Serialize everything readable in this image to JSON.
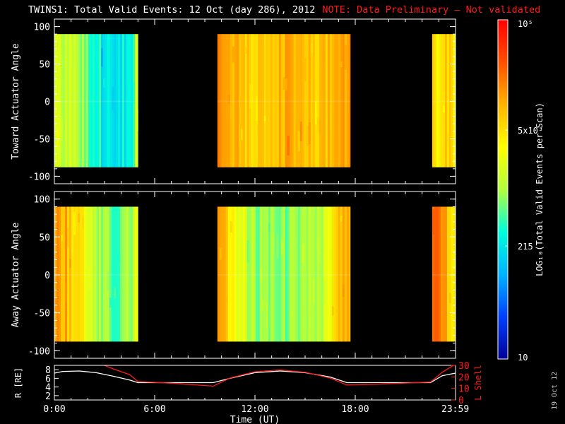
{
  "title": "TWINS1: Total Valid Events: 12 Oct (day 286), 2012",
  "note": "NOTE: Data Preliminary — Not validated",
  "footer_date": "19 Oct 12",
  "colors": {
    "background": "#000000",
    "note": "#ff1a1a",
    "l_shell": "#ff1a1a",
    "radius": "#ffffff"
  },
  "chart_data": [
    {
      "type": "heatmap",
      "id": "toward",
      "ylabel": "Toward Actuator Angle",
      "ylim": [
        -110,
        110
      ],
      "yticks": [
        100,
        50,
        0,
        -50,
        -100
      ],
      "data_ylim": [
        -88,
        90
      ],
      "data_intervals_hours": [
        [
          0.0,
          5.0
        ],
        [
          9.75,
          17.7
        ],
        [
          22.6,
          23.99
        ]
      ],
      "level_profile": [
        {
          "x": 0.0,
          "v": 0.55
        },
        {
          "x": 1.2,
          "v": 0.52
        },
        {
          "x": 2.5,
          "v": 0.38
        },
        {
          "x": 3.5,
          "v": 0.3
        },
        {
          "x": 4.5,
          "v": 0.36
        },
        {
          "x": 5.0,
          "v": 0.62
        },
        {
          "x": 9.75,
          "v": 0.76
        },
        {
          "x": 11.0,
          "v": 0.74
        },
        {
          "x": 12.0,
          "v": 0.7
        },
        {
          "x": 14.0,
          "v": 0.74
        },
        {
          "x": 16.0,
          "v": 0.73
        },
        {
          "x": 17.7,
          "v": 0.76
        },
        {
          "x": 22.6,
          "v": 0.66
        },
        {
          "x": 23.3,
          "v": 0.68
        },
        {
          "x": 24.0,
          "v": 0.64
        }
      ]
    },
    {
      "type": "heatmap",
      "id": "away",
      "ylabel": "Away Actuator Angle",
      "ylim": [
        -110,
        110
      ],
      "yticks": [
        100,
        50,
        0,
        -50,
        -100
      ],
      "data_ylim": [
        -88,
        90
      ],
      "data_intervals_hours": [
        [
          0.0,
          5.0
        ],
        [
          9.75,
          17.7
        ],
        [
          22.6,
          23.99
        ]
      ],
      "level_profile": [
        {
          "x": 0.0,
          "v": 0.8
        },
        {
          "x": 1.0,
          "v": 0.72
        },
        {
          "x": 2.5,
          "v": 0.48
        },
        {
          "x": 3.8,
          "v": 0.42
        },
        {
          "x": 5.0,
          "v": 0.58
        },
        {
          "x": 9.75,
          "v": 0.84
        },
        {
          "x": 10.5,
          "v": 0.66
        },
        {
          "x": 12.0,
          "v": 0.48
        },
        {
          "x": 14.0,
          "v": 0.45
        },
        {
          "x": 16.0,
          "v": 0.52
        },
        {
          "x": 17.2,
          "v": 0.74
        },
        {
          "x": 17.7,
          "v": 0.78
        },
        {
          "x": 22.6,
          "v": 0.84
        },
        {
          "x": 23.3,
          "v": 0.76
        },
        {
          "x": 24.0,
          "v": 0.66
        }
      ]
    },
    {
      "type": "line",
      "id": "orbit",
      "xlabel": "Time (UT)",
      "xlim": [
        0,
        24
      ],
      "xtick_labels": [
        "0:00",
        "6:00",
        "12:00",
        "18:00",
        "23:59"
      ],
      "xtick_values": [
        0,
        6,
        12,
        18,
        23.983
      ],
      "left_axis": {
        "label": "R [RE]",
        "ylim": [
          1,
          9
        ],
        "ticks": [
          8,
          6,
          4,
          2
        ]
      },
      "right_axis": {
        "label": "L Shell",
        "ylim": [
          0,
          30
        ],
        "ticks": [
          30,
          20,
          10,
          0
        ]
      },
      "series": [
        {
          "name": "R",
          "axis": "left",
          "x": [
            0,
            0.5,
            1.5,
            2.5,
            3.5,
            4.5,
            5.0,
            6.0,
            8.0,
            9.5,
            10.5,
            12.0,
            13.5,
            15.0,
            16.5,
            17.5,
            19.0,
            21.0,
            22.5,
            23.2,
            24.0
          ],
          "y": [
            7.2,
            7.6,
            7.7,
            7.3,
            6.5,
            5.6,
            5.0,
            5.0,
            5.0,
            5.0,
            6.0,
            7.3,
            7.7,
            7.3,
            6.3,
            5.0,
            5.0,
            5.0,
            5.0,
            6.6,
            7.2
          ]
        },
        {
          "name": "L Shell",
          "axis": "right",
          "x": [
            3.0,
            3.5,
            4.5,
            5.0,
            7.0,
            9.5,
            10.5,
            12.0,
            13.5,
            15.0,
            16.5,
            17.5,
            19.0,
            22.5,
            23.2,
            23.99
          ],
          "y": [
            30,
            27,
            22,
            16,
            14.5,
            12,
            19,
            24.5,
            26,
            24,
            19,
            13,
            13.5,
            15.5,
            24,
            31
          ]
        }
      ]
    }
  ],
  "colorbar": {
    "label": "LOG₁₀(Total Valid Events per Scan)",
    "ticks": [
      {
        "value": 10,
        "label": "10"
      },
      {
        "value": 215,
        "label": "215"
      },
      {
        "value": 5000,
        "label": "5x10³"
      },
      {
        "value": 100000,
        "label": "10⁵"
      }
    ],
    "range": [
      10,
      100000
    ],
    "stops": [
      "#000096",
      "#0040ff",
      "#00b4ff",
      "#00ffdc",
      "#b4ff3c",
      "#ffff00",
      "#ffb400",
      "#ff5000",
      "#ff0000"
    ]
  }
}
